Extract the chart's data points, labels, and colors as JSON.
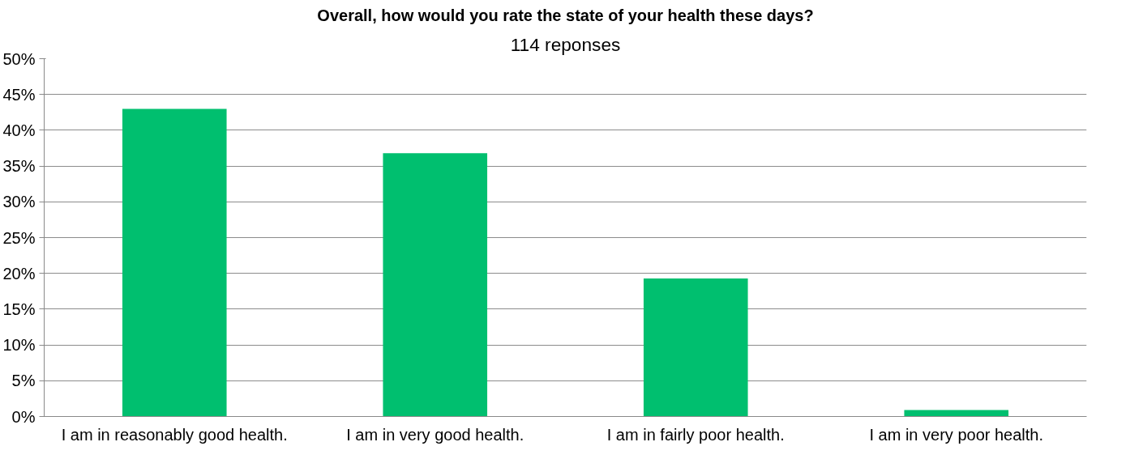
{
  "chart_data": {
    "type": "bar",
    "title": "Overall, how would you rate the state of your health these days?",
    "subtitle": "114 reponses",
    "categories": [
      "I am in reasonably good health.",
      "I am in very good health.",
      "I am in fairly poor health.",
      "I am in very poor health."
    ],
    "values": [
      43,
      36.8,
      19.3,
      0.9
    ],
    "color": "#00bf6f",
    "ylim": [
      0,
      50
    ],
    "yticks": [
      {
        "value": 0,
        "label": "0%"
      },
      {
        "value": 5,
        "label": "5%"
      },
      {
        "value": 10,
        "label": "10%"
      },
      {
        "value": 15,
        "label": "15%"
      },
      {
        "value": 20,
        "label": "20%"
      },
      {
        "value": 25,
        "label": "25%"
      },
      {
        "value": 30,
        "label": "30%"
      },
      {
        "value": 35,
        "label": "35%"
      },
      {
        "value": 40,
        "label": "40%"
      },
      {
        "value": 45,
        "label": "45%"
      },
      {
        "value": 50,
        "label": "50%"
      }
    ],
    "grid": "y"
  }
}
